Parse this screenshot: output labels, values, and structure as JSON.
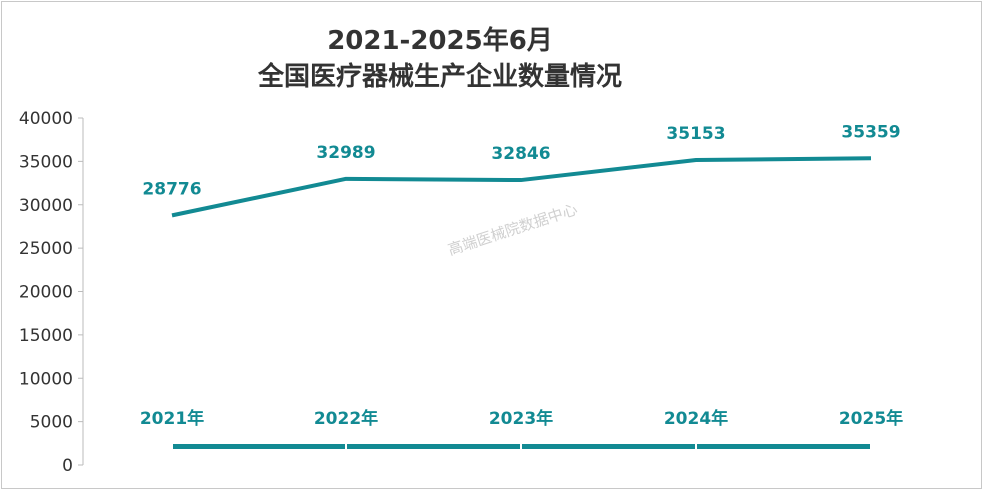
{
  "chart_data": {
    "type": "line",
    "title": "2021-2025年6月\n全国医疗器械生产企业数量情况",
    "title_lines": [
      "2021-2025年6月",
      "全国医疗器械生产企业数量情况"
    ],
    "categories": [
      "2021年",
      "2022年",
      "2023年",
      "2024年",
      "2025年"
    ],
    "values": [
      28776,
      32989,
      32846,
      35153,
      35359
    ],
    "ylim": [
      0,
      40000
    ],
    "yticks": [
      0,
      5000,
      10000,
      15000,
      20000,
      25000,
      30000,
      35000,
      40000
    ],
    "xlabel": "",
    "ylabel": "",
    "grid": false,
    "legend": "none",
    "color": "#128a93"
  },
  "watermark": "高端医械院数据中心"
}
